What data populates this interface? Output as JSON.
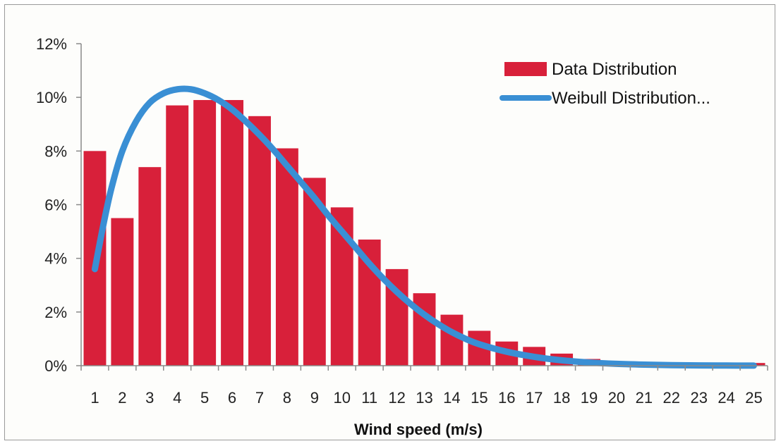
{
  "chart_data": {
    "type": "bar",
    "title": "",
    "xlabel": "Wind speed (m/s)",
    "ylabel": "",
    "categories": [
      "1",
      "2",
      "3",
      "4",
      "5",
      "6",
      "7",
      "8",
      "9",
      "10",
      "11",
      "12",
      "13",
      "14",
      "15",
      "16",
      "17",
      "18",
      "19",
      "20",
      "21",
      "22",
      "23",
      "24",
      "25"
    ],
    "yticks": [
      "0%",
      "2%",
      "4%",
      "6%",
      "8%",
      "10%",
      "12%"
    ],
    "ylim": [
      0,
      12
    ],
    "grid": false,
    "legend_position": "top-right",
    "series": [
      {
        "name": "Data Distribution",
        "type": "bar",
        "color": "#d8203a",
        "values": [
          8.0,
          5.5,
          7.4,
          9.7,
          9.9,
          9.9,
          9.3,
          8.1,
          7.0,
          5.9,
          4.7,
          3.6,
          2.7,
          1.9,
          1.3,
          0.9,
          0.7,
          0.45,
          0.25,
          0.15,
          0.08,
          0.05,
          0.03,
          0.02,
          0.1
        ]
      },
      {
        "name": "Weibull Distribution...",
        "type": "line",
        "color": "#3a8fd4",
        "x": [
          1,
          1.3,
          1.6,
          2,
          2.5,
          3,
          3.5,
          4,
          4.5,
          5,
          5.5,
          6,
          6.5,
          7,
          7.5,
          8,
          8.5,
          9,
          9.5,
          10,
          10.5,
          11,
          11.5,
          12,
          12.5,
          13,
          13.5,
          14,
          14.5,
          15,
          16,
          17,
          18,
          19,
          20,
          21,
          22,
          23,
          24,
          25
        ],
        "values": [
          3.6,
          5.2,
          6.6,
          8.0,
          9.1,
          9.8,
          10.15,
          10.3,
          10.3,
          10.15,
          9.9,
          9.55,
          9.1,
          8.6,
          8.05,
          7.45,
          6.85,
          6.25,
          5.6,
          5.0,
          4.4,
          3.8,
          3.25,
          2.75,
          2.3,
          1.9,
          1.55,
          1.25,
          1.0,
          0.8,
          0.52,
          0.33,
          0.2,
          0.12,
          0.07,
          0.04,
          0.02,
          0.01,
          0.005,
          0.002
        ]
      }
    ]
  }
}
